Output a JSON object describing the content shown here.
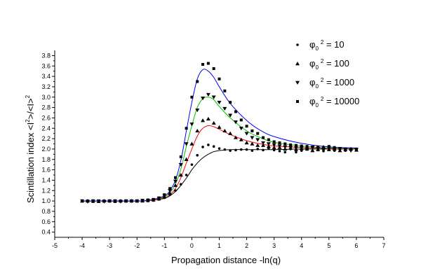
{
  "chart_data": {
    "type": "scatter",
    "title": "",
    "xlabel": "Propagation distance -ln(q)",
    "ylabel": "Scintillation index <I²>/<I>²",
    "ylabel_parts": {
      "main": "Scintillation index  <I",
      "sup1": "2",
      "mid": ">/<I>",
      "sup2": "2"
    },
    "xlim": [
      -5,
      7
    ],
    "ylim": [
      0.3,
      3.9
    ],
    "x_ticks": [
      -5,
      -4,
      -3,
      -2,
      -1,
      0,
      1,
      2,
      3,
      4,
      5,
      6,
      7
    ],
    "x_tick_labels": [
      "-5",
      "-4",
      "-3",
      "-2",
      "-1",
      "0",
      "1",
      "2",
      "3",
      "4",
      "5",
      "6",
      "7"
    ],
    "y_ticks": [
      0.4,
      0.6,
      0.8,
      1.0,
      1.2,
      1.4,
      1.6,
      1.8,
      2.0,
      2.2,
      2.4,
      2.6,
      2.8,
      3.0,
      3.2,
      3.4,
      3.6,
      3.8
    ],
    "y_tick_labels": [
      "0.4",
      "0.6",
      "0.8",
      "1.0",
      "1.2",
      "1.4",
      "1.6",
      "1.8",
      "2.0",
      "2.2",
      "2.4",
      "2.6",
      "2.8",
      "3.0",
      "3.2",
      "3.4",
      "3.6",
      "3.8"
    ],
    "grid": false,
    "legend_position": "top-right",
    "series": [
      {
        "name": "φ0² = 10",
        "legend": {
          "base": "φ",
          "sub": "0",
          "sup": "2",
          "rest": " = 10"
        },
        "marker": "circle",
        "curve_color": "#000000",
        "points": [
          [
            -4.0,
            1.0
          ],
          [
            -3.8,
            0.99
          ],
          [
            -3.6,
            1.0
          ],
          [
            -3.4,
            0.99
          ],
          [
            -3.2,
            1.0
          ],
          [
            -3.0,
            1.0
          ],
          [
            -2.8,
            0.99
          ],
          [
            -2.6,
            1.0
          ],
          [
            -2.4,
            1.0
          ],
          [
            -2.2,
            1.0
          ],
          [
            -2.0,
            1.0
          ],
          [
            -1.8,
            1.0
          ],
          [
            -1.6,
            1.0
          ],
          [
            -1.4,
            1.01
          ],
          [
            -1.2,
            1.03
          ],
          [
            -1.0,
            1.06
          ],
          [
            -0.8,
            1.12
          ],
          [
            -0.6,
            1.2
          ],
          [
            -0.4,
            1.32
          ],
          [
            -0.2,
            1.5
          ],
          [
            0.0,
            1.7
          ],
          [
            0.2,
            1.88
          ],
          [
            0.4,
            2.04
          ],
          [
            0.6,
            2.08
          ],
          [
            0.8,
            2.05
          ],
          [
            1.0,
            2.01
          ],
          [
            1.2,
            1.99
          ],
          [
            1.4,
            1.97
          ],
          [
            1.6,
            1.98
          ],
          [
            1.8,
            1.99
          ],
          [
            2.0,
            1.99
          ],
          [
            2.2,
            1.97
          ],
          [
            2.4,
            2.0
          ],
          [
            2.6,
            1.98
          ],
          [
            2.8,
            2.01
          ],
          [
            3.0,
            1.98
          ],
          [
            3.2,
            1.96
          ],
          [
            3.4,
            1.94
          ],
          [
            3.6,
            2.0
          ],
          [
            3.8,
            1.94
          ],
          [
            4.0,
            1.97
          ],
          [
            4.2,
            2.01
          ],
          [
            4.4,
            1.97
          ],
          [
            4.6,
            1.98
          ],
          [
            4.8,
            1.96
          ],
          [
            5.0,
            2.02
          ],
          [
            5.2,
            1.97
          ],
          [
            5.4,
            1.99
          ],
          [
            5.6,
            1.97
          ],
          [
            5.8,
            1.99
          ],
          [
            6.0,
            1.99
          ]
        ],
        "curve": [
          [
            -4.0,
            1.0
          ],
          [
            -3.0,
            1.0
          ],
          [
            -2.0,
            1.0
          ],
          [
            -1.5,
            1.01
          ],
          [
            -1.0,
            1.05
          ],
          [
            -0.8,
            1.1
          ],
          [
            -0.6,
            1.18
          ],
          [
            -0.4,
            1.3
          ],
          [
            -0.2,
            1.44
          ],
          [
            0.0,
            1.6
          ],
          [
            0.2,
            1.73
          ],
          [
            0.4,
            1.83
          ],
          [
            0.6,
            1.9
          ],
          [
            0.8,
            1.95
          ],
          [
            1.0,
            1.97
          ],
          [
            1.4,
            1.99
          ],
          [
            2.0,
            1.99
          ],
          [
            3.0,
            1.99
          ],
          [
            4.0,
            2.0
          ],
          [
            5.0,
            2.0
          ],
          [
            6.0,
            2.0
          ]
        ]
      },
      {
        "name": "φ0² = 100",
        "legend": {
          "base": "φ",
          "sub": "0",
          "sup": "2",
          "rest": " = 100"
        },
        "marker": "triangle-up",
        "curve_color": "#ff0000",
        "points": [
          [
            -4.0,
            1.0
          ],
          [
            -3.8,
            1.0
          ],
          [
            -3.6,
            1.0
          ],
          [
            -3.4,
            0.99
          ],
          [
            -3.2,
            1.0
          ],
          [
            -3.0,
            1.0
          ],
          [
            -2.8,
            1.0
          ],
          [
            -2.6,
            1.0
          ],
          [
            -2.4,
            1.0
          ],
          [
            -2.2,
            1.0
          ],
          [
            -2.0,
            1.0
          ],
          [
            -1.8,
            1.0
          ],
          [
            -1.6,
            1.01
          ],
          [
            -1.4,
            1.02
          ],
          [
            -1.2,
            1.04
          ],
          [
            -1.0,
            1.08
          ],
          [
            -0.8,
            1.15
          ],
          [
            -0.6,
            1.3
          ],
          [
            -0.4,
            1.5
          ],
          [
            -0.2,
            1.8
          ],
          [
            0.0,
            2.1
          ],
          [
            0.2,
            2.35
          ],
          [
            0.4,
            2.55
          ],
          [
            0.6,
            2.58
          ],
          [
            0.8,
            2.5
          ],
          [
            1.0,
            2.42
          ],
          [
            1.2,
            2.35
          ],
          [
            1.4,
            2.3
          ],
          [
            1.6,
            2.22
          ],
          [
            1.8,
            2.18
          ],
          [
            2.0,
            2.12
          ],
          [
            2.2,
            2.1
          ],
          [
            2.4,
            2.07
          ],
          [
            2.6,
            2.07
          ],
          [
            2.8,
            2.05
          ],
          [
            3.0,
            2.03
          ],
          [
            3.2,
            2.03
          ],
          [
            3.4,
            2.0
          ],
          [
            3.6,
            2.02
          ],
          [
            3.8,
            1.99
          ],
          [
            4.0,
            2.01
          ],
          [
            4.2,
            2.0
          ],
          [
            4.4,
            1.97
          ],
          [
            4.6,
            1.99
          ],
          [
            4.8,
            2.04
          ],
          [
            5.0,
            1.99
          ],
          [
            5.2,
            2.0
          ],
          [
            5.4,
            1.97
          ],
          [
            5.6,
            1.99
          ],
          [
            5.8,
            2.0
          ],
          [
            6.0,
            1.98
          ]
        ],
        "curve": [
          [
            -4.0,
            1.0
          ],
          [
            -3.0,
            1.0
          ],
          [
            -2.0,
            1.0
          ],
          [
            -1.5,
            1.01
          ],
          [
            -1.0,
            1.06
          ],
          [
            -0.8,
            1.12
          ],
          [
            -0.6,
            1.24
          ],
          [
            -0.4,
            1.45
          ],
          [
            -0.2,
            1.73
          ],
          [
            0.0,
            2.0
          ],
          [
            0.2,
            2.25
          ],
          [
            0.4,
            2.4
          ],
          [
            0.6,
            2.45
          ],
          [
            0.8,
            2.43
          ],
          [
            1.0,
            2.38
          ],
          [
            1.4,
            2.28
          ],
          [
            2.0,
            2.16
          ],
          [
            2.5,
            2.1
          ],
          [
            3.0,
            2.06
          ],
          [
            4.0,
            2.03
          ],
          [
            5.0,
            2.01
          ],
          [
            6.0,
            2.0
          ]
        ]
      },
      {
        "name": "φ0² = 1000",
        "legend": {
          "base": "φ",
          "sub": "0",
          "sup": "2",
          "rest": " = 1000"
        },
        "marker": "triangle-down",
        "curve_color": "#00c000",
        "points": [
          [
            -4.0,
            1.0
          ],
          [
            -3.8,
            0.99
          ],
          [
            -3.6,
            1.0
          ],
          [
            -3.4,
            1.0
          ],
          [
            -3.2,
            0.99
          ],
          [
            -3.0,
            1.0
          ],
          [
            -2.8,
            1.0
          ],
          [
            -2.6,
            0.99
          ],
          [
            -2.4,
            1.0
          ],
          [
            -2.2,
            1.0
          ],
          [
            -2.0,
            1.0
          ],
          [
            -1.8,
            1.01
          ],
          [
            -1.6,
            1.01
          ],
          [
            -1.4,
            1.02
          ],
          [
            -1.2,
            1.05
          ],
          [
            -1.0,
            1.1
          ],
          [
            -0.8,
            1.2
          ],
          [
            -0.6,
            1.38
          ],
          [
            -0.4,
            1.7
          ],
          [
            -0.2,
            2.1
          ],
          [
            0.0,
            2.48
          ],
          [
            0.2,
            2.75
          ],
          [
            0.4,
            2.98
          ],
          [
            0.6,
            3.05
          ],
          [
            0.8,
            3.0
          ],
          [
            1.0,
            2.9
          ],
          [
            1.2,
            2.78
          ],
          [
            1.4,
            2.65
          ],
          [
            1.6,
            2.52
          ],
          [
            1.8,
            2.4
          ],
          [
            2.0,
            2.3
          ],
          [
            2.2,
            2.22
          ],
          [
            2.4,
            2.18
          ],
          [
            2.6,
            2.12
          ],
          [
            2.8,
            2.1
          ],
          [
            3.0,
            2.08
          ],
          [
            3.2,
            2.06
          ],
          [
            3.4,
            2.04
          ],
          [
            3.6,
            2.03
          ],
          [
            3.8,
            2.02
          ],
          [
            4.0,
            2.02
          ],
          [
            4.2,
            2.0
          ],
          [
            4.4,
            2.03
          ],
          [
            4.6,
            2.01
          ],
          [
            4.8,
            1.98
          ],
          [
            5.0,
            2.02
          ],
          [
            5.2,
            1.99
          ],
          [
            5.4,
            2.01
          ],
          [
            5.6,
            1.99
          ],
          [
            5.8,
            1.97
          ],
          [
            6.0,
            1.99
          ]
        ],
        "curve": [
          [
            -4.0,
            1.0
          ],
          [
            -3.0,
            1.0
          ],
          [
            -2.0,
            1.0
          ],
          [
            -1.5,
            1.02
          ],
          [
            -1.0,
            1.08
          ],
          [
            -0.8,
            1.16
          ],
          [
            -0.6,
            1.32
          ],
          [
            -0.4,
            1.62
          ],
          [
            -0.2,
            2.05
          ],
          [
            0.0,
            2.45
          ],
          [
            0.2,
            2.8
          ],
          [
            0.4,
            2.97
          ],
          [
            0.6,
            3.0
          ],
          [
            0.8,
            2.95
          ],
          [
            1.0,
            2.82
          ],
          [
            1.4,
            2.6
          ],
          [
            2.0,
            2.35
          ],
          [
            2.5,
            2.22
          ],
          [
            3.0,
            2.13
          ],
          [
            4.0,
            2.06
          ],
          [
            5.0,
            2.02
          ],
          [
            6.0,
            2.01
          ]
        ]
      },
      {
        "name": "φ0² = 10000",
        "legend": {
          "base": "φ",
          "sub": "0",
          "sup": "2",
          "rest": " = 10000"
        },
        "marker": "square",
        "curve_color": "#0000ff",
        "points": [
          [
            -4.0,
            1.0
          ],
          [
            -3.8,
            1.0
          ],
          [
            -3.6,
            0.99
          ],
          [
            -3.4,
            1.0
          ],
          [
            -3.2,
            1.0
          ],
          [
            -3.0,
            1.0
          ],
          [
            -2.8,
            0.99
          ],
          [
            -2.6,
            1.0
          ],
          [
            -2.4,
            1.0
          ],
          [
            -2.2,
            1.0
          ],
          [
            -2.0,
            1.0
          ],
          [
            -1.8,
            1.01
          ],
          [
            -1.6,
            1.02
          ],
          [
            -1.4,
            1.03
          ],
          [
            -1.2,
            1.06
          ],
          [
            -1.0,
            1.12
          ],
          [
            -0.8,
            1.24
          ],
          [
            -0.6,
            1.45
          ],
          [
            -0.4,
            1.85
          ],
          [
            -0.2,
            2.4
          ],
          [
            0.0,
            3.0
          ],
          [
            0.2,
            3.3
          ],
          [
            0.4,
            3.63
          ],
          [
            0.6,
            3.65
          ],
          [
            0.8,
            3.55
          ],
          [
            1.0,
            3.35
          ],
          [
            1.2,
            3.12
          ],
          [
            1.4,
            2.9
          ],
          [
            1.6,
            2.72
          ],
          [
            1.8,
            2.56
          ],
          [
            2.0,
            2.44
          ],
          [
            2.2,
            2.35
          ],
          [
            2.4,
            2.3
          ],
          [
            2.6,
            2.22
          ],
          [
            2.8,
            2.18
          ],
          [
            3.0,
            2.14
          ],
          [
            3.2,
            2.12
          ],
          [
            3.4,
            2.1
          ],
          [
            3.6,
            2.08
          ],
          [
            3.8,
            2.07
          ],
          [
            4.0,
            2.06
          ],
          [
            4.2,
            2.05
          ],
          [
            4.4,
            2.04
          ],
          [
            4.6,
            2.04
          ],
          [
            4.8,
            2.03
          ],
          [
            5.0,
            2.05
          ],
          [
            5.2,
            2.03
          ],
          [
            5.4,
            2.01
          ],
          [
            5.6,
            2.0
          ],
          [
            5.8,
            2.0
          ],
          [
            6.0,
            2.0
          ]
        ],
        "curve": [
          [
            -4.0,
            1.0
          ],
          [
            -3.0,
            1.0
          ],
          [
            -2.0,
            1.0
          ],
          [
            -1.5,
            1.02
          ],
          [
            -1.0,
            1.1
          ],
          [
            -0.8,
            1.2
          ],
          [
            -0.6,
            1.4
          ],
          [
            -0.4,
            1.78
          ],
          [
            -0.2,
            2.35
          ],
          [
            0.0,
            2.9
          ],
          [
            0.2,
            3.35
          ],
          [
            0.4,
            3.53
          ],
          [
            0.6,
            3.5
          ],
          [
            0.8,
            3.38
          ],
          [
            1.0,
            3.2
          ],
          [
            1.4,
            2.88
          ],
          [
            2.0,
            2.55
          ],
          [
            2.5,
            2.36
          ],
          [
            3.0,
            2.24
          ],
          [
            4.0,
            2.11
          ],
          [
            5.0,
            2.04
          ],
          [
            6.0,
            2.02
          ]
        ]
      }
    ]
  }
}
